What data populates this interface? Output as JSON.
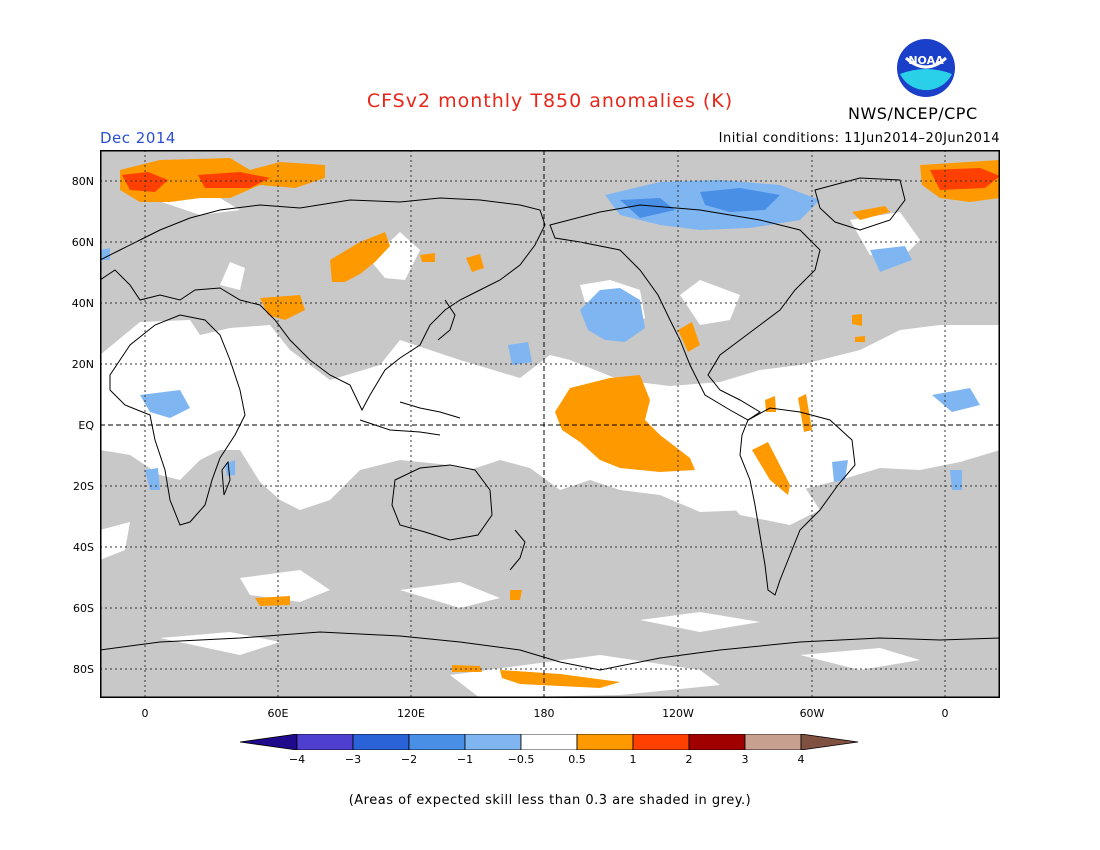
{
  "title": "CFSv2 monthly T850 anomalies (K)",
  "agency": "NWS/NCEP/CPC",
  "logo_text": "NOAA",
  "period": "Dec 2014",
  "initial_conditions": "Initial conditions: 11Jun2014–20Jun2014",
  "lat_labels": [
    "80N",
    "60N",
    "40N",
    "20N",
    "EQ",
    "20S",
    "40S",
    "60S",
    "80S"
  ],
  "lon_labels": [
    "0",
    "60E",
    "120E",
    "180",
    "120W",
    "60W",
    "0"
  ],
  "colorbar": {
    "labels": [
      "−4",
      "−3",
      "−2",
      "−1",
      "−0.5",
      "0.5",
      "1",
      "2",
      "3",
      "4"
    ],
    "colors": [
      "#1f0a8c",
      "#4f3fd0",
      "#2a62d8",
      "#4a8fe6",
      "#7fb6f2",
      "#ffffff",
      "#ff9900",
      "#ff4000",
      "#a00000",
      "#c8a090",
      "#805040"
    ]
  },
  "colors": {
    "skill_grey": "#c8c8c8",
    "warm1": "#ff9900",
    "warm2": "#ff4000",
    "cool1": "#7fb6f2",
    "cool2": "#4a8fe6"
  },
  "footnote": "(Areas of expected skill less than 0.3 are shaded in grey.)"
}
